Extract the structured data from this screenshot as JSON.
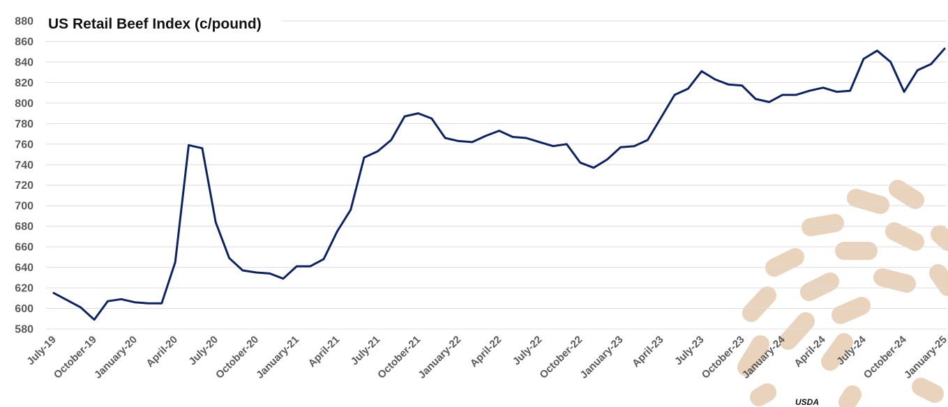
{
  "chart_data": {
    "type": "line",
    "title": "US Retail Beef Index (c/pound)",
    "xlabel": "",
    "ylabel": "",
    "ylim": [
      580,
      880
    ],
    "yticks": [
      580,
      600,
      620,
      640,
      660,
      680,
      700,
      720,
      740,
      760,
      780,
      800,
      820,
      840,
      860,
      880
    ],
    "grid": true,
    "legend": "none",
    "line_color": "#0d2260",
    "x_tick_labels": [
      "July-19",
      "October-19",
      "January-20",
      "April-20",
      "July-20",
      "October-20",
      "January-21",
      "April-21",
      "July-21",
      "October-21",
      "January-22",
      "April-22",
      "July-22",
      "October-22",
      "January-23",
      "April-23",
      "July-23",
      "October-23",
      "January-24",
      "April-24",
      "July-24",
      "October-24",
      "January-25"
    ],
    "x": [
      "2019-07",
      "2019-08",
      "2019-09",
      "2019-10",
      "2019-11",
      "2019-12",
      "2020-01",
      "2020-02",
      "2020-03",
      "2020-04",
      "2020-05",
      "2020-06",
      "2020-07",
      "2020-08",
      "2020-09",
      "2020-10",
      "2020-11",
      "2020-12",
      "2021-01",
      "2021-02",
      "2021-03",
      "2021-04",
      "2021-05",
      "2021-06",
      "2021-07",
      "2021-08",
      "2021-09",
      "2021-10",
      "2021-11",
      "2021-12",
      "2022-01",
      "2022-02",
      "2022-03",
      "2022-04",
      "2022-05",
      "2022-06",
      "2022-07",
      "2022-08",
      "2022-09",
      "2022-10",
      "2022-11",
      "2022-12",
      "2023-01",
      "2023-02",
      "2023-03",
      "2023-04",
      "2023-05",
      "2023-06",
      "2023-07",
      "2023-08",
      "2023-09",
      "2023-10",
      "2023-11",
      "2023-12",
      "2024-01",
      "2024-02",
      "2024-03",
      "2024-04",
      "2024-05",
      "2024-06",
      "2024-07",
      "2024-08",
      "2024-09",
      "2024-10",
      "2024-11",
      "2024-12",
      "2025-01"
    ],
    "values": [
      615,
      608,
      601,
      589,
      607,
      609,
      606,
      605,
      605,
      645,
      759,
      756,
      684,
      649,
      637,
      635,
      634,
      629,
      641,
      641,
      648,
      675,
      696,
      747,
      753,
      764,
      787,
      790,
      785,
      766,
      763,
      762,
      768,
      773,
      767,
      766,
      762,
      758,
      760,
      742,
      737,
      745,
      757,
      758,
      764,
      786,
      808,
      814,
      831,
      823,
      818,
      817,
      804,
      801,
      808,
      808,
      812,
      815,
      811,
      812,
      843,
      851,
      840,
      811,
      832,
      838,
      853
    ]
  },
  "footer": {
    "source": "USDA"
  }
}
